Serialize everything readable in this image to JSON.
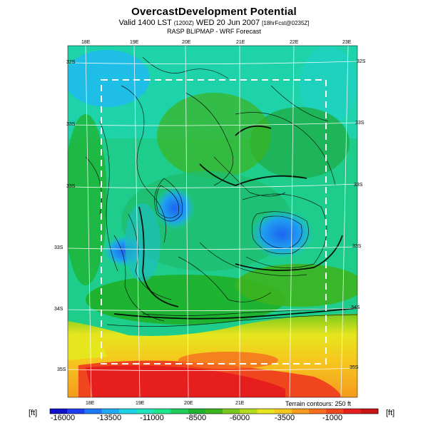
{
  "header": {
    "title": "OvercastDevelopment Potential",
    "subtitle_main": "Valid 1400 LST",
    "subtitle_small1": "(1200Z)",
    "subtitle_day": "WED 20 Jun 2007",
    "subtitle_small2": "[18hrFcst@0235Z]",
    "subtitle2": "RASP BLIPMAP - WRF Forecast"
  },
  "map": {
    "top_lon_labels": [
      "18E",
      "19E",
      "20E",
      "21E",
      "22E",
      "23E"
    ],
    "bottom_lon_labels": [
      "18E",
      "19E",
      "20E",
      "21E"
    ],
    "left_lat_labels": [
      "32S",
      "33S",
      "33S",
      "33S",
      "34S",
      "35S"
    ],
    "right_lat_labels": [
      "32S",
      "33S",
      "33S",
      "33S",
      "34S",
      "35S"
    ],
    "terrain_note": "Terrain contours: 250 ft"
  },
  "colorbar": {
    "unit_left": "[ft]",
    "unit_right": "[ft]",
    "ticks": [
      "-16000",
      "-13500",
      "-11000",
      "-8500",
      "-6000",
      "-3500",
      "-1000"
    ],
    "colors": [
      "#1010c8",
      "#1e3cf0",
      "#1e78f5",
      "#1eaaf5",
      "#1ed2e6",
      "#1ee6be",
      "#1ee68c",
      "#1ecd5a",
      "#1eb432",
      "#3cb41e",
      "#78c81e",
      "#b4dc1e",
      "#e6e61e",
      "#f5c81e",
      "#f59b1e",
      "#f56e1e",
      "#f0461e",
      "#e61e1e",
      "#c81414"
    ]
  }
}
